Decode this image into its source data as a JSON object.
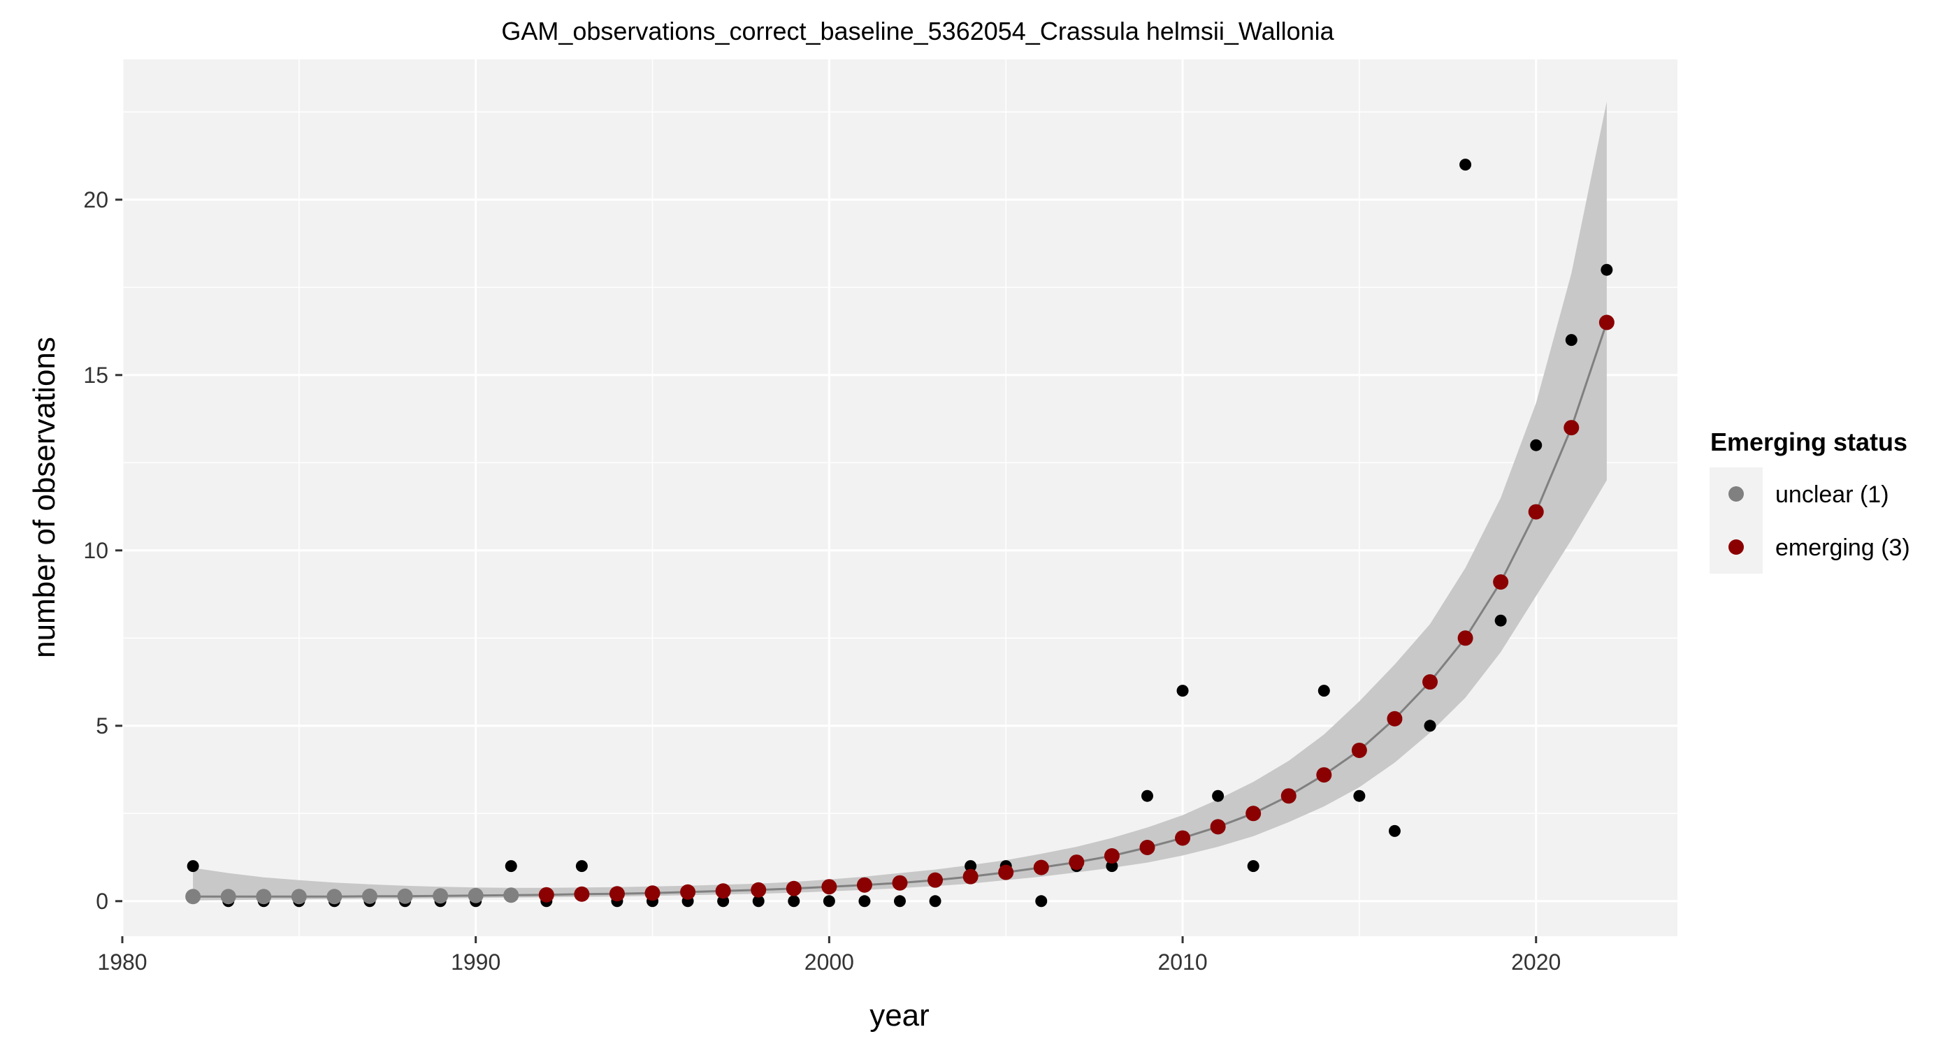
{
  "chart_data": {
    "type": "scatter",
    "title": "GAM_observations_correct_baseline_5362054_Crassula helmsii_Wallonia",
    "xlabel": "year",
    "ylabel": "number of observations",
    "xlim": [
      1980,
      2024
    ],
    "ylim": [
      -1,
      24
    ],
    "x_ticks": [
      1980,
      1990,
      2000,
      2010,
      2020
    ],
    "y_ticks": [
      0,
      5,
      10,
      15,
      20
    ],
    "x_tick_labels": [
      "1980",
      "1990",
      "2000",
      "2010",
      "2020"
    ],
    "y_tick_labels": [
      "0",
      "5",
      "10",
      "15",
      "20"
    ],
    "grid": true,
    "legend_position": "right",
    "legend": {
      "title": "Emerging status",
      "entries": [
        {
          "label": "unclear (1)",
          "color": "#808080"
        },
        {
          "label": "emerging (3)",
          "color": "#8b0000"
        }
      ]
    },
    "observed": {
      "color": "#000000",
      "x": [
        1982,
        1983,
        1984,
        1985,
        1986,
        1987,
        1988,
        1989,
        1990,
        1991,
        1992,
        1993,
        1994,
        1995,
        1996,
        1997,
        1998,
        1999,
        2000,
        2001,
        2002,
        2003,
        2004,
        2005,
        2006,
        2007,
        2008,
        2009,
        2010,
        2011,
        2012,
        2013,
        2014,
        2015,
        2016,
        2017,
        2018,
        2019,
        2020,
        2021,
        2022
      ],
      "y": [
        1,
        0,
        0,
        0,
        0,
        0,
        0,
        0,
        0,
        1,
        0,
        1,
        0,
        0,
        0,
        0,
        0,
        0,
        0,
        0,
        0,
        0,
        1,
        1,
        0,
        1,
        1,
        3,
        6,
        3,
        1,
        3,
        6,
        3,
        2,
        5,
        21,
        8,
        13,
        16,
        18
      ]
    },
    "fit": {
      "line_color": "#808080",
      "ribbon_color": "#c8c8c8",
      "x": [
        1982,
        1983,
        1984,
        1985,
        1986,
        1987,
        1988,
        1989,
        1990,
        1991,
        1992,
        1993,
        1994,
        1995,
        1996,
        1997,
        1998,
        1999,
        2000,
        2001,
        2002,
        2003,
        2004,
        2005,
        2006,
        2007,
        2008,
        2009,
        2010,
        2011,
        2012,
        2013,
        2014,
        2015,
        2016,
        2017,
        2018,
        2019,
        2020,
        2021,
        2022
      ],
      "y": [
        0.13,
        0.13,
        0.13,
        0.13,
        0.13,
        0.14,
        0.14,
        0.15,
        0.16,
        0.17,
        0.18,
        0.2,
        0.21,
        0.23,
        0.26,
        0.29,
        0.32,
        0.36,
        0.41,
        0.46,
        0.52,
        0.6,
        0.7,
        0.82,
        0.96,
        1.11,
        1.29,
        1.53,
        1.8,
        2.12,
        2.5,
        3.0,
        3.6,
        4.3,
        5.2,
        6.25,
        7.5,
        9.1,
        11.1,
        13.5,
        16.5
      ],
      "lower": [
        0.02,
        0.03,
        0.04,
        0.05,
        0.06,
        0.07,
        0.07,
        0.08,
        0.09,
        0.1,
        0.11,
        0.12,
        0.13,
        0.15,
        0.17,
        0.19,
        0.21,
        0.24,
        0.28,
        0.32,
        0.37,
        0.43,
        0.5,
        0.6,
        0.7,
        0.82,
        0.95,
        1.1,
        1.3,
        1.55,
        1.85,
        2.25,
        2.7,
        3.25,
        3.95,
        4.8,
        5.8,
        7.1,
        8.7,
        10.3,
        12.0
      ],
      "upper": [
        0.95,
        0.8,
        0.68,
        0.6,
        0.53,
        0.48,
        0.44,
        0.41,
        0.39,
        0.38,
        0.38,
        0.39,
        0.4,
        0.42,
        0.44,
        0.47,
        0.5,
        0.55,
        0.62,
        0.7,
        0.8,
        0.9,
        1.03,
        1.17,
        1.35,
        1.55,
        1.8,
        2.1,
        2.45,
        2.9,
        3.4,
        4.0,
        4.75,
        5.7,
        6.75,
        7.9,
        9.5,
        11.5,
        14.2,
        17.9,
        22.8
      ],
      "status": [
        "unclear (1)",
        "unclear (1)",
        "unclear (1)",
        "unclear (1)",
        "unclear (1)",
        "unclear (1)",
        "unclear (1)",
        "unclear (1)",
        "unclear (1)",
        "unclear (1)",
        "emerging (3)",
        "emerging (3)",
        "emerging (3)",
        "emerging (3)",
        "emerging (3)",
        "emerging (3)",
        "emerging (3)",
        "emerging (3)",
        "emerging (3)",
        "emerging (3)",
        "emerging (3)",
        "emerging (3)",
        "emerging (3)",
        "emerging (3)",
        "emerging (3)",
        "emerging (3)",
        "emerging (3)",
        "emerging (3)",
        "emerging (3)",
        "emerging (3)",
        "emerging (3)",
        "emerging (3)",
        "emerging (3)",
        "emerging (3)",
        "emerging (3)",
        "emerging (3)",
        "emerging (3)",
        "emerging (3)",
        "emerging (3)",
        "emerging (3)",
        "emerging (3)"
      ]
    }
  }
}
